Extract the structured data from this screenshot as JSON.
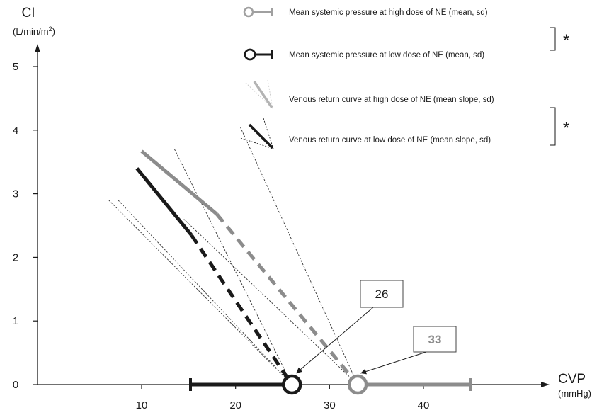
{
  "chart_data": {
    "type": "line",
    "x_axis": {
      "label": "CVP",
      "unit": "(mmHg)",
      "ticks": [
        10,
        20,
        30,
        40
      ],
      "range": [
        5,
        47
      ]
    },
    "y_axis": {
      "label": "CI",
      "unit_prefix": "(L/min/m",
      "unit_sup": "2",
      "unit_suffix": ")",
      "ticks": [
        0,
        1,
        2,
        3,
        4,
        5
      ],
      "range": [
        0,
        5.8
      ]
    },
    "series": [
      {
        "name": "Venous return curve at high dose of NE (mean slope, sd)",
        "color": "#8c8c8c",
        "solid": [
          [
            10,
            3.67
          ],
          [
            18,
            2.68
          ]
        ],
        "dashed": [
          [
            18,
            2.68
          ],
          [
            33,
            0
          ]
        ],
        "sd_lines": [
          [
            [
              20.5,
              4.05
            ],
            [
              33,
              0
            ]
          ],
          [
            [
              14.5,
              2.6
            ],
            [
              33,
              0
            ]
          ]
        ]
      },
      {
        "name": "Venous return curve at low dose of NE (mean slope, sd)",
        "color": "#1a1a1a",
        "solid": [
          [
            9.5,
            3.4
          ],
          [
            15.3,
            2.35
          ]
        ],
        "dashed": [
          [
            15.3,
            2.35
          ],
          [
            26,
            0
          ]
        ],
        "sd_lines": [
          [
            [
              13.5,
              3.7
            ],
            [
              26,
              0
            ]
          ],
          [
            [
              6.5,
              2.9
            ],
            [
              26,
              0
            ]
          ],
          [
            [
              7.5,
              2.9
            ],
            [
              26,
              0
            ]
          ]
        ]
      }
    ],
    "mean_systemic_pressure": [
      {
        "name": "Mean systemic pressure at high dose of NE (mean, sd)",
        "mean": 33,
        "sd_high": 45,
        "color": "#8c8c8c",
        "label": "33"
      },
      {
        "name": "Mean systemic pressure at low dose of NE (mean, sd)",
        "mean": 26,
        "sd_low": 15.2,
        "color": "#1a1a1a",
        "label": "26"
      }
    ],
    "legend": {
      "placement": "top-right",
      "items": [
        "Mean systemic pressure at high dose of NE (mean, sd)",
        "Mean systemic pressure at low dose of NE (mean, sd)",
        "Venous return curve at high dose of NE (mean slope, sd)",
        "Venous return curve at low dose of NE (mean slope, sd)"
      ],
      "significance_marks": [
        "*",
        "*"
      ]
    },
    "grid": false
  }
}
